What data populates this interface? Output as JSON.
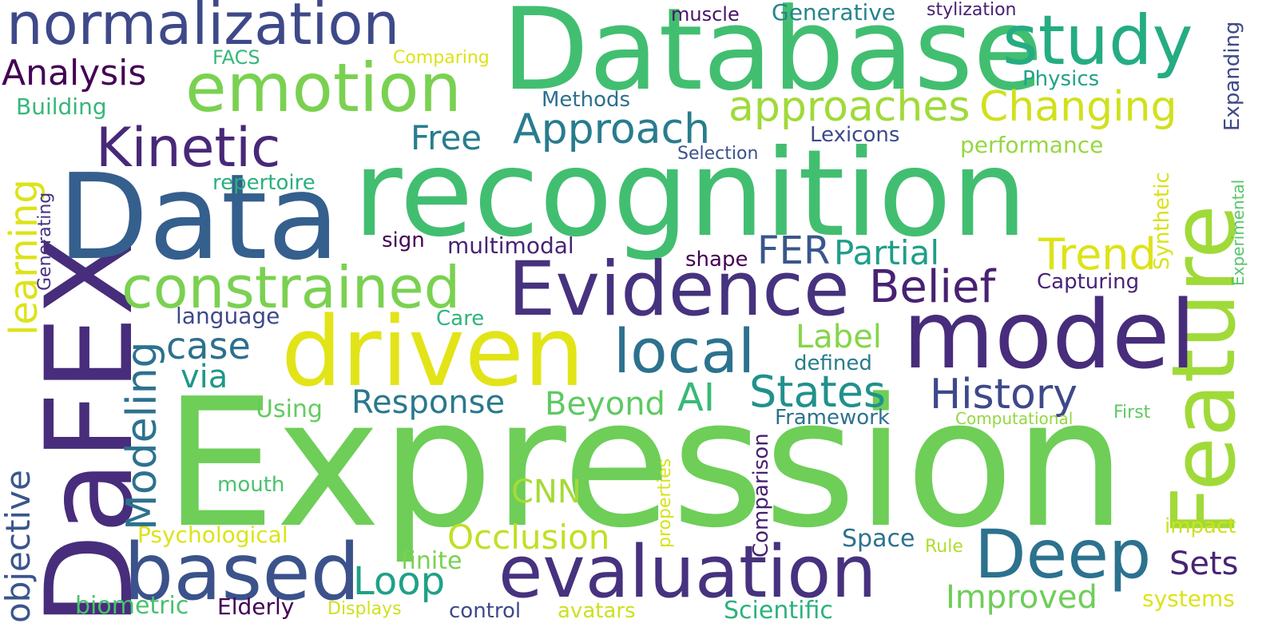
{
  "words": [
    {
      "id": "expression",
      "text": "Expression",
      "color": "#6ece58"
    },
    {
      "id": "recognition",
      "text": "recognition",
      "color": "#42be71"
    },
    {
      "id": "database",
      "text": "Database",
      "color": "#42be71"
    },
    {
      "id": "dafex",
      "text": "DaFEX",
      "color": "#472d7b"
    },
    {
      "id": "data",
      "text": "Data",
      "color": "#355f8d"
    },
    {
      "id": "feature",
      "text": "Feature",
      "color": "#a0da39"
    },
    {
      "id": "driven",
      "text": "driven",
      "color": "#e2e418"
    },
    {
      "id": "model",
      "text": "model",
      "color": "#472d7b"
    },
    {
      "id": "evidence",
      "text": "Evidence",
      "color": "#46327e"
    },
    {
      "id": "evaluation",
      "text": "evaluation",
      "color": "#46327e"
    },
    {
      "id": "based",
      "text": "based",
      "color": "#3b528b"
    },
    {
      "id": "normalization",
      "text": "normalization",
      "color": "#3e4989"
    },
    {
      "id": "emotion",
      "text": "emotion",
      "color": "#7ad151"
    },
    {
      "id": "study",
      "text": "study",
      "color": "#25ac82"
    },
    {
      "id": "constrained",
      "text": "constrained",
      "color": "#7ad151"
    },
    {
      "id": "kinetic",
      "text": "Kinetic",
      "color": "#482878"
    },
    {
      "id": "deep",
      "text": "Deep",
      "color": "#2c728e"
    },
    {
      "id": "local",
      "text": "local",
      "color": "#2c728e"
    },
    {
      "id": "approaches",
      "text": "approaches",
      "color": "#a0da39"
    },
    {
      "id": "changing",
      "text": "Changing",
      "color": "#d0e11c"
    },
    {
      "id": "approach",
      "text": "Approach",
      "color": "#287c8e"
    },
    {
      "id": "belief",
      "text": "Belief",
      "color": "#482173"
    },
    {
      "id": "history",
      "text": "History",
      "color": "#3e4989"
    },
    {
      "id": "states",
      "text": "States",
      "color": "#21918c"
    },
    {
      "id": "trend",
      "text": "Trend",
      "color": "#dde318"
    },
    {
      "id": "fer",
      "text": "FER",
      "color": "#39568c"
    },
    {
      "id": "partial",
      "text": "Partial",
      "color": "#1f9e89"
    },
    {
      "id": "analysis",
      "text": "Analysis",
      "color": "#440154"
    },
    {
      "id": "learning",
      "text": "learning",
      "color": "#dde318"
    },
    {
      "id": "modeling",
      "text": "Modeling",
      "color": "#2c728e"
    },
    {
      "id": "objective",
      "text": "objective",
      "color": "#39568c"
    },
    {
      "id": "case",
      "text": "case",
      "color": "#2d708e"
    },
    {
      "id": "loop",
      "text": "Loop",
      "color": "#1fa187"
    },
    {
      "id": "occlusion",
      "text": "Occlusion",
      "color": "#c2df23"
    },
    {
      "id": "improved",
      "text": "Improved",
      "color": "#6ece58"
    },
    {
      "id": "response",
      "text": "Response",
      "color": "#2a788e"
    },
    {
      "id": "beyond",
      "text": "Beyond",
      "color": "#5ec962"
    },
    {
      "id": "ai",
      "text": "AI",
      "color": "#38b977"
    },
    {
      "id": "free",
      "text": "Free",
      "color": "#287d8e"
    },
    {
      "id": "label",
      "text": "Label",
      "color": "#86d549"
    },
    {
      "id": "via",
      "text": "via",
      "color": "#1f988b"
    },
    {
      "id": "cnn",
      "text": "CNN",
      "color": "#a5db36"
    },
    {
      "id": "sets",
      "text": "Sets",
      "color": "#482475"
    },
    {
      "id": "expanding",
      "text": "Expanding",
      "color": "#3e4a89"
    },
    {
      "id": "synthetic",
      "text": "Synthetic",
      "color": "#d8e219"
    },
    {
      "id": "experimental",
      "text": "Experimental",
      "color": "#54c568"
    },
    {
      "id": "generating",
      "text": "Generating",
      "color": "#46327e"
    },
    {
      "id": "comparison",
      "text": "Comparison",
      "color": "#481f70"
    },
    {
      "id": "properties",
      "text": "properties",
      "color": "#d8e219"
    },
    {
      "id": "muscle",
      "text": "muscle",
      "color": "#481467"
    },
    {
      "id": "generative",
      "text": "Generative",
      "color": "#25848e"
    },
    {
      "id": "stylization",
      "text": "stylization",
      "color": "#482173"
    },
    {
      "id": "fecs",
      "text": "FACS",
      "color": "#35b779"
    },
    {
      "id": "comparing",
      "text": "Comparing",
      "color": "#dde318"
    },
    {
      "id": "physics",
      "text": "Physics",
      "color": "#20a486"
    },
    {
      "id": "methods",
      "text": "Methods",
      "color": "#2d708e"
    },
    {
      "id": "building",
      "text": "Building",
      "color": "#35b779"
    },
    {
      "id": "selection",
      "text": "Selection",
      "color": "#3b528b"
    },
    {
      "id": "lexicons",
      "text": "Lexicons",
      "color": "#3e4a89"
    },
    {
      "id": "performance",
      "text": "performance",
      "color": "#95d840"
    },
    {
      "id": "repertoire",
      "text": "repertoire",
      "color": "#2ab07f"
    },
    {
      "id": "sign",
      "text": "sign",
      "color": "#440154"
    },
    {
      "id": "multimodal",
      "text": "multimodal",
      "color": "#482475"
    },
    {
      "id": "shape",
      "text": "shape",
      "color": "#440154"
    },
    {
      "id": "capturing",
      "text": "Capturing",
      "color": "#482475"
    },
    {
      "id": "language",
      "text": "language",
      "color": "#3e4989"
    },
    {
      "id": "care",
      "text": "Care",
      "color": "#2fb47c"
    },
    {
      "id": "defined",
      "text": "defined",
      "color": "#287c8e"
    },
    {
      "id": "using",
      "text": "Using",
      "color": "#63cb5f"
    },
    {
      "id": "framework",
      "text": "Framework",
      "color": "#2c728e"
    },
    {
      "id": "computational",
      "text": "Computational",
      "color": "#95d840"
    },
    {
      "id": "first",
      "text": "First",
      "color": "#5ec962"
    },
    {
      "id": "mouth",
      "text": "mouth",
      "color": "#4ac16d"
    },
    {
      "id": "psychological",
      "text": "Psychological",
      "color": "#dde318"
    },
    {
      "id": "finite",
      "text": "finite",
      "color": "#7ad151"
    },
    {
      "id": "space",
      "text": "Space",
      "color": "#2c728e"
    },
    {
      "id": "rule",
      "text": "Rule",
      "color": "#b0dd2f"
    },
    {
      "id": "impact",
      "text": "impact",
      "color": "#d0e11c"
    },
    {
      "id": "biometric",
      "text": "biometric",
      "color": "#4ac16d"
    },
    {
      "id": "elderly",
      "text": "Elderly",
      "color": "#440154"
    },
    {
      "id": "displays",
      "text": "Displays",
      "color": "#d0e11c"
    },
    {
      "id": "control",
      "text": "control",
      "color": "#3e4989"
    },
    {
      "id": "avatars",
      "text": "avatars",
      "color": "#cde11d"
    },
    {
      "id": "scientific",
      "text": "Scientific",
      "color": "#2db27d"
    },
    {
      "id": "systems",
      "text": "systems",
      "color": "#dde318"
    }
  ]
}
